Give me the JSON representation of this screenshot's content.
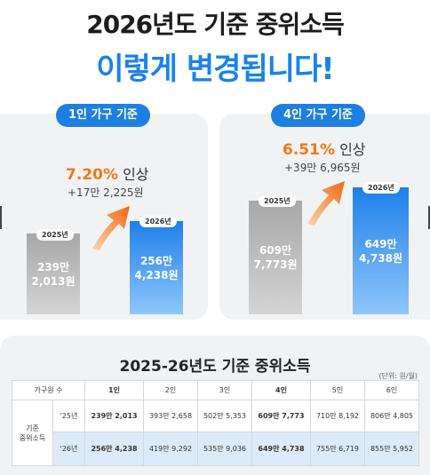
{
  "headline": {
    "line1": "2026년도 기준 중위소득",
    "line2": "이렇게 변경됩니다!"
  },
  "cards": [
    {
      "pill": "1인 가구 기준",
      "rate_pct": "7.20%",
      "rate_word": "인상",
      "diff": "+17만 2,225원",
      "bars": [
        {
          "tag": "2025년",
          "value_l1": "239만",
          "value_l2": "2,013원"
        },
        {
          "tag": "2026년",
          "value_l1": "256만",
          "value_l2": "4,238원"
        }
      ]
    },
    {
      "pill": "4인 가구 기준",
      "rate_pct": "6.51%",
      "rate_word": "인상",
      "diff": "+39만 6,965원",
      "bars": [
        {
          "tag": "2025년",
          "value_l1": "609만",
          "value_l2": "7,773원"
        },
        {
          "tag": "2026년",
          "value_l1": "649만",
          "value_l2": "4,738원"
        }
      ]
    }
  ],
  "colors": {
    "accent_blue": "#1a83e8",
    "accent_orange": "#f07a1a",
    "card_bg": "#f1f2f4"
  },
  "table": {
    "title": "2025-26년도 기준 중위소득",
    "unit": "(단위: 원/월)",
    "header_first": "가구원 수",
    "columns": [
      "1인",
      "2인",
      "3인",
      "4인",
      "5인",
      "6인"
    ],
    "group_label_l1": "기준",
    "group_label_l2": "중위소득",
    "rows": [
      {
        "year": "'25년",
        "values": [
          "239만 2,013",
          "393만 2,658",
          "502만 5,353",
          "609만 7,773",
          "710만 8,192",
          "806만 4,805"
        ]
      },
      {
        "year": "'26년",
        "values": [
          "256만 4,238",
          "419만 9,292",
          "535만 9,036",
          "649만 4,738",
          "755만 6,719",
          "855만 5,952"
        ]
      }
    ]
  }
}
